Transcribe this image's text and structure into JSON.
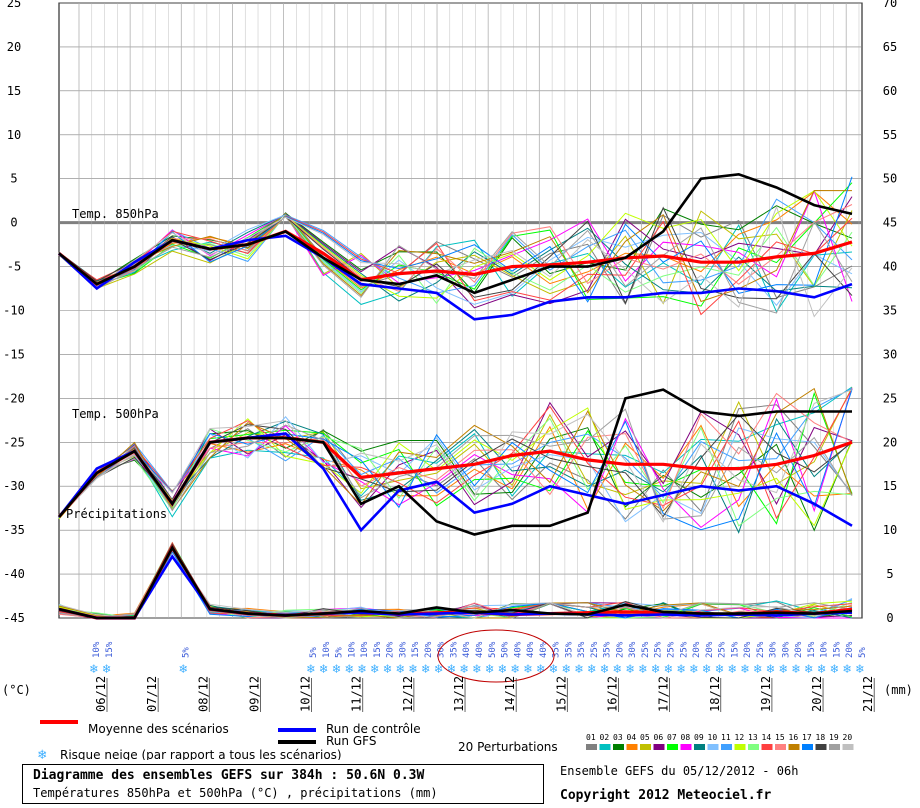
{
  "chart_data": {
    "type": "line",
    "left_axis": {
      "unit": "(°C)",
      "ticks": [
        25,
        20,
        15,
        10,
        5,
        0,
        -5,
        -10,
        -15,
        -20,
        -25,
        -30,
        -35,
        -40,
        -45
      ],
      "range": [
        -45,
        25
      ]
    },
    "right_axis": {
      "unit": "(mm)",
      "ticks": [
        70,
        65,
        60,
        55,
        50,
        45,
        40,
        35,
        30,
        25,
        20,
        15,
        10,
        5,
        0
      ],
      "range": [
        0,
        70
      ]
    },
    "x_categories": [
      "06/12",
      "07/12",
      "08/12",
      "09/12",
      "10/12",
      "11/12",
      "12/12",
      "13/12",
      "14/12",
      "15/12",
      "16/12",
      "17/12",
      "18/12",
      "19/12",
      "20/12",
      "21/12"
    ],
    "panel_labels": {
      "t850": "Temp. 850hPa",
      "t500": "Temp. 500hPa",
      "precip": "Précipitations"
    },
    "snow_risk_percent": [
      "10%",
      "15%",
      "",
      "",
      "",
      "",
      "",
      "5%",
      "",
      "",
      "",
      "",
      "",
      "",
      "",
      "",
      "",
      "5%",
      "10%",
      "5%",
      "10%",
      "10%",
      "15%",
      "20%",
      "30%",
      "15%",
      "20%",
      "30%",
      "35%",
      "40%",
      "40%",
      "50%",
      "50%",
      "40%",
      "40%",
      "40%",
      "35%",
      "35%",
      "35%",
      "25%",
      "35%",
      "20%",
      "30%",
      "25%",
      "25%",
      "25%",
      "25%",
      "20%",
      "20%",
      "25%",
      "15%",
      "20%",
      "25%",
      "30%",
      "30%",
      "20%",
      "15%",
      "10%",
      "15%",
      "20%",
      "5%"
    ],
    "series": [
      {
        "name": "Moyenne des scénarios",
        "color": "#ff0000",
        "t850": [
          -3.5,
          -7.0,
          -5.0,
          -2.0,
          -3.0,
          -2.5,
          -1.0,
          -3.5,
          -6.5,
          -5.8,
          -5.5,
          -5.9,
          -5.0,
          -4.8,
          -4.5,
          -4.0,
          -3.8,
          -4.5,
          -4.5,
          -3.9,
          -3.5,
          -2.2
        ],
        "t500": [
          -33.5,
          -28.5,
          -26.0,
          -32.0,
          -25.0,
          -24.5,
          -24.5,
          -25.0,
          -29.0,
          -28.5,
          -28.0,
          -27.5,
          -26.5,
          -26.0,
          -27.0,
          -27.5,
          -27.5,
          -28.0,
          -28.0,
          -27.5,
          -26.5,
          -25.0
        ],
        "precip": [
          1,
          0,
          0,
          8,
          1,
          0.5,
          0.3,
          0.5,
          0.7,
          0.4,
          0.6,
          0.6,
          0.4,
          0.5,
          0.6,
          0.7,
          0.6,
          0.5,
          0.4,
          0.7,
          0.5,
          1
        ]
      },
      {
        "name": "Run de contrôle",
        "color": "#0000ff",
        "t850": [
          -3.5,
          -7.5,
          -4.5,
          -2.0,
          -3.0,
          -2.0,
          -1.5,
          -4.0,
          -7.0,
          -7.5,
          -8.0,
          -11.0,
          -10.5,
          -9.0,
          -8.5,
          -8.5,
          -8.0,
          -8.0,
          -7.5,
          -7.8,
          -8.5,
          -7.0
        ],
        "t500": [
          -33.5,
          -28.0,
          -26.0,
          -32.0,
          -25.0,
          -24.5,
          -24.0,
          -28.0,
          -35.0,
          -30.5,
          -29.5,
          -33.0,
          -32.0,
          -30.0,
          -31.0,
          -32.0,
          -31.0,
          -30.0,
          -30.5,
          -30.0,
          -32.0,
          -34.5
        ],
        "precip": [
          1,
          0,
          0,
          7,
          1,
          0.5,
          0.3,
          0.5,
          0.6,
          0.4,
          0.5,
          0.6,
          0.4,
          0.5,
          0.4,
          0.3,
          0.4,
          0.3,
          0.4,
          0.3,
          0.5,
          0.6
        ]
      },
      {
        "name": "Run GFS",
        "color": "#000000",
        "t850": [
          -3.5,
          -7.0,
          -5.0,
          -2.0,
          -3.0,
          -2.5,
          -1.0,
          -4.0,
          -6.5,
          -7.0,
          -6.0,
          -8.0,
          -6.5,
          -5.0,
          -5.0,
          -4.0,
          -1.0,
          5.0,
          5.5,
          4.0,
          2.0,
          1.0
        ],
        "t500": [
          -33.5,
          -28.5,
          -26.0,
          -32.0,
          -25.0,
          -24.5,
          -24.5,
          -25.0,
          -32.0,
          -30.0,
          -34.0,
          -35.5,
          -34.5,
          -34.5,
          -33.0,
          -20.0,
          -19.0,
          -21.5,
          -22.0,
          -21.5,
          -21.5,
          -21.5
        ],
        "precip": [
          1,
          0,
          0,
          8,
          1,
          0.5,
          0.3,
          0.5,
          0.8,
          0.5,
          1.2,
          0.6,
          0.9,
          0.5,
          0.4,
          1.5,
          0.7,
          0.5,
          0.5,
          0.6,
          0.5,
          0.8
        ]
      }
    ],
    "perturbations_count": 20
  },
  "legend": {
    "mean": "Moyenne des scénarios",
    "control": "Run de contrôle",
    "gfs": "Run GFS",
    "snow": "Risque neige (par rapport a tous les scénarios)",
    "perturbations": "20 Perturbations",
    "member_ids": [
      "01",
      "02",
      "03",
      "04",
      "05",
      "06",
      "07",
      "08",
      "09",
      "10",
      "11",
      "12",
      "13",
      "14",
      "15",
      "16",
      "17",
      "18",
      "19",
      "20"
    ],
    "member_colors": [
      "#808080",
      "#00c0c0",
      "#008000",
      "#ff8000",
      "#c0c000",
      "#800080",
      "#00ff00",
      "#ff00ff",
      "#008080",
      "#80c0ff",
      "#40a0ff",
      "#c0ff00",
      "#80ff80",
      "#ff4040",
      "#ff8080",
      "#c08000",
      "#0080ff",
      "#404040",
      "#a0a0a0",
      "#c0c0c0"
    ]
  },
  "footer": {
    "title": "Diagramme des ensembles GEFS sur 384h : 50.6N 0.3W",
    "subtitle": "Températures 850hPa et 500hPa (°C) , précipitations (mm)",
    "run": "Ensemble GEFS du 05/12/2012 - 06h",
    "copyright": "Copyright 2012 Meteociel.fr"
  }
}
